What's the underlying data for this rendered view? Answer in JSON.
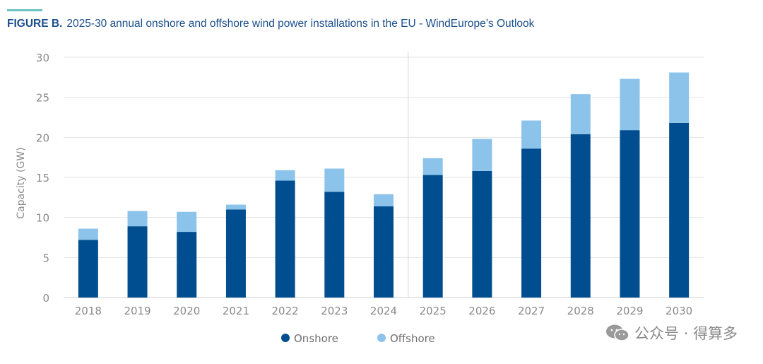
{
  "figure": {
    "label": "FIGURE B.",
    "title": "2025-30 annual onshore and offshore wind power installations in the EU - WindEurope’s Outlook",
    "accent_color": "#6dc5c3",
    "title_color": "#1b4f8c"
  },
  "watermark": {
    "text": "公众号 · 得算多",
    "icon": "wechat-logo"
  },
  "chart_data": {
    "type": "bar",
    "stacked": true,
    "title": "2025-30 annual onshore and offshore wind power installations in the EU - WindEurope’s Outlook",
    "xlabel": "",
    "ylabel": "Capacity (GW)",
    "ylim": [
      0,
      30
    ],
    "yticks": [
      "0",
      "5",
      "10",
      "15",
      "20",
      "25",
      "30"
    ],
    "grid": true,
    "legend_position": "bottom-center",
    "divider_between": [
      "2024",
      "2025"
    ],
    "categories": [
      "2018",
      "2019",
      "2020",
      "2021",
      "2022",
      "2023",
      "2024",
      "2025",
      "2026",
      "2027",
      "2028",
      "2029",
      "2030"
    ],
    "series": [
      {
        "name": "Onshore",
        "color": "#004e8f",
        "values": [
          7.2,
          8.9,
          8.2,
          11.0,
          14.6,
          13.2,
          11.4,
          15.3,
          15.8,
          18.6,
          20.4,
          20.9,
          21.8
        ]
      },
      {
        "name": "Offshore",
        "color": "#8cc3ea",
        "values": [
          1.4,
          1.9,
          2.5,
          0.6,
          1.3,
          2.9,
          1.5,
          2.1,
          4.0,
          3.5,
          5.0,
          6.4,
          6.3
        ]
      }
    ]
  }
}
